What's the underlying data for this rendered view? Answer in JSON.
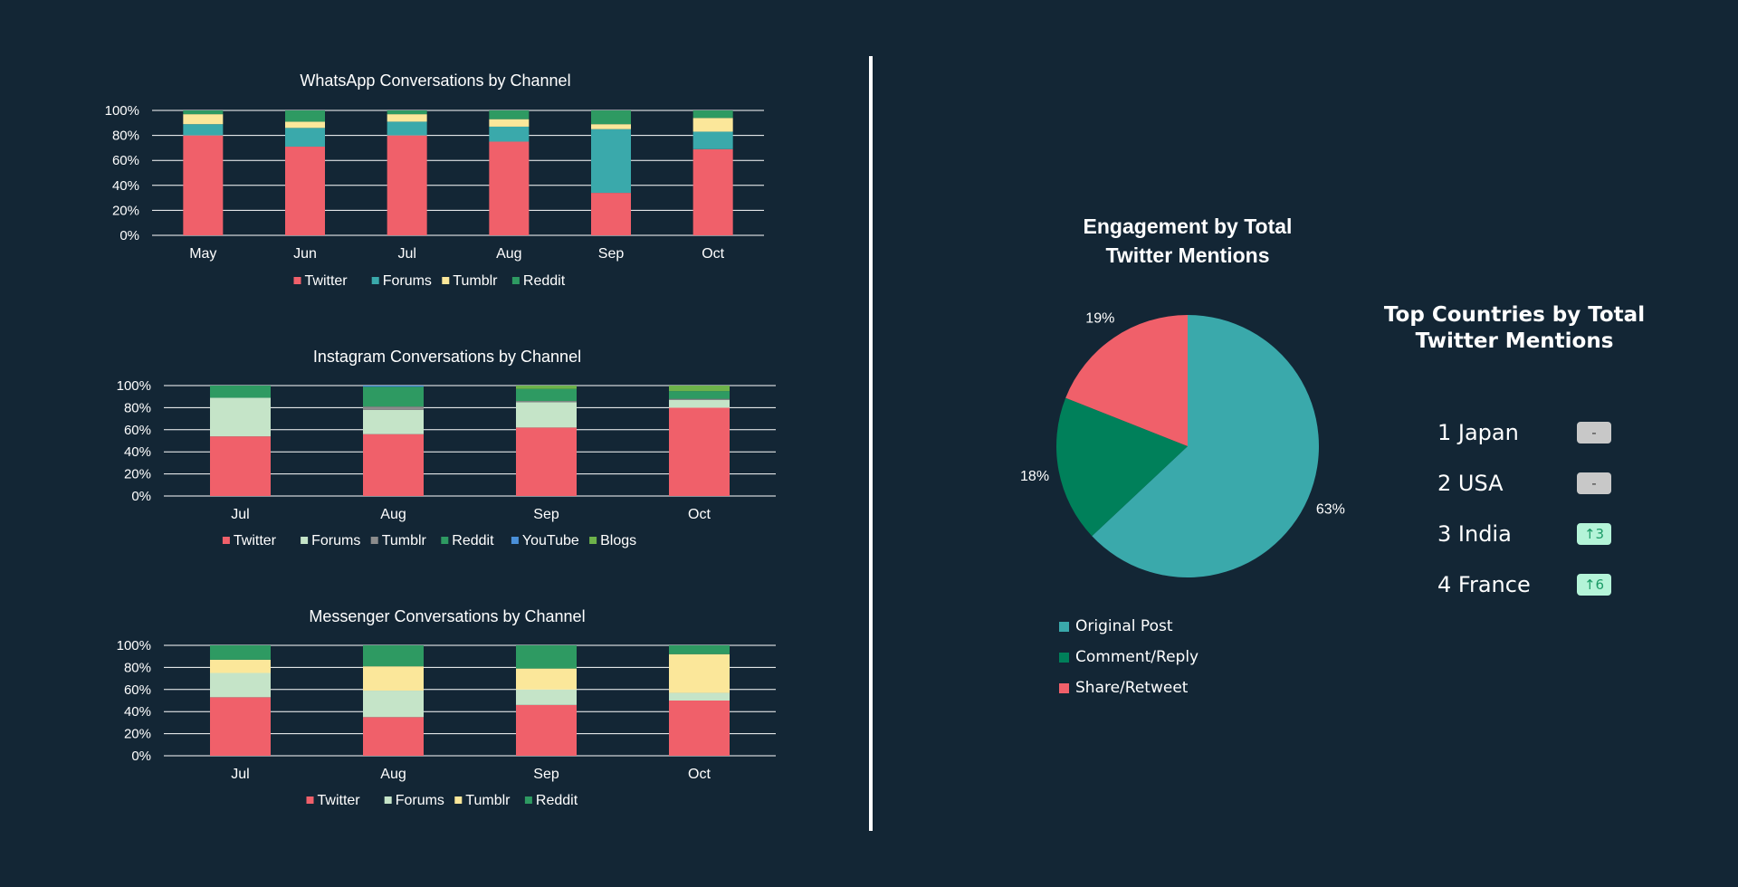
{
  "colors": {
    "background": "#132635",
    "twitter": "#f0606a",
    "forums_whatsapp": "#3aa9ab",
    "forums_light": "#c5e4c8",
    "tumblr_yellow": "#fbe79a",
    "tumblr_gray": "#8c8c8c",
    "reddit": "#2e9a62",
    "youtube": "#4a90d9",
    "blogs": "#6db24a",
    "pie_original": "#3aa9ab",
    "pie_comment": "#00805a",
    "pie_share": "#f0606a",
    "badge_neutral": "#c8c8c8",
    "badge_up": "#b4f4d8"
  },
  "chart_data": [
    {
      "type": "bar",
      "stacked": true,
      "percent": true,
      "title": "WhatsApp Conversations by Channel",
      "categories": [
        "May",
        "Jun",
        "Jul",
        "Aug",
        "Sep",
        "Oct"
      ],
      "yticks": [
        "0%",
        "20%",
        "40%",
        "60%",
        "80%",
        "100%"
      ],
      "ylim": [
        0,
        100
      ],
      "grid": true,
      "legend_position": "bottom",
      "series": [
        {
          "name": "Twitter",
          "color": "#f0606a",
          "values": [
            80,
            71,
            80,
            75,
            34,
            69
          ]
        },
        {
          "name": "Forums",
          "color": "#3aa9ab",
          "values": [
            9,
            15,
            11,
            12,
            51,
            14
          ]
        },
        {
          "name": "Tumblr",
          "color": "#fbe79a",
          "values": [
            8,
            5,
            6,
            6,
            4,
            11
          ]
        },
        {
          "name": "Reddit",
          "color": "#2e9a62",
          "values": [
            3,
            9,
            3,
            7,
            11,
            6
          ]
        }
      ]
    },
    {
      "type": "bar",
      "stacked": true,
      "percent": true,
      "title": "Instagram Conversations by Channel",
      "categories": [
        "Jul",
        "Aug",
        "Sep",
        "Oct"
      ],
      "yticks": [
        "0%",
        "20%",
        "40%",
        "60%",
        "80%",
        "100%"
      ],
      "ylim": [
        0,
        100
      ],
      "grid": true,
      "legend_position": "bottom",
      "series": [
        {
          "name": "Twitter",
          "color": "#f0606a",
          "values": [
            54,
            56,
            62,
            80
          ]
        },
        {
          "name": "Forums",
          "color": "#c5e4c8",
          "values": [
            35,
            22,
            23,
            7
          ]
        },
        {
          "name": "Tumblr",
          "color": "#8c8c8c",
          "values": [
            0,
            3,
            1,
            1
          ]
        },
        {
          "name": "Reddit",
          "color": "#2e9a62",
          "values": [
            11,
            18,
            11,
            7
          ]
        },
        {
          "name": "YouTube",
          "color": "#4a90d9",
          "values": [
            0,
            1,
            0,
            0
          ]
        },
        {
          "name": "Blogs",
          "color": "#6db24a",
          "values": [
            0,
            0,
            3,
            5
          ]
        }
      ]
    },
    {
      "type": "bar",
      "stacked": true,
      "percent": true,
      "title": "Messenger Conversations by Channel",
      "categories": [
        "Jul",
        "Aug",
        "Sep",
        "Oct"
      ],
      "yticks": [
        "0%",
        "20%",
        "40%",
        "60%",
        "80%",
        "100%"
      ],
      "ylim": [
        0,
        100
      ],
      "grid": true,
      "legend_position": "bottom",
      "series": [
        {
          "name": "Twitter",
          "color": "#f0606a",
          "values": [
            53,
            35,
            46,
            50
          ]
        },
        {
          "name": "Forums",
          "color": "#c5e4c8",
          "values": [
            22,
            24,
            14,
            7
          ]
        },
        {
          "name": "Tumblr",
          "color": "#fbe79a",
          "values": [
            12,
            22,
            19,
            35
          ]
        },
        {
          "name": "Reddit",
          "color": "#2e9a62",
          "values": [
            13,
            19,
            21,
            8
          ]
        }
      ]
    },
    {
      "type": "pie",
      "title_lines": [
        "Engagement by Total",
        "Twitter Mentions"
      ],
      "legend_position": "bottom",
      "slices": [
        {
          "name": "Original Post",
          "value": 63,
          "label": "63%",
          "color": "#3aa9ab"
        },
        {
          "name": "Comment/Reply",
          "value": 18,
          "label": "18%",
          "color": "#00805a"
        },
        {
          "name": "Share/Retweet",
          "value": 19,
          "label": "19%",
          "color": "#f0606a"
        }
      ]
    }
  ],
  "countries": {
    "title_lines": [
      "Top Countries by Total",
      "Twitter Mentions"
    ],
    "items": [
      {
        "name": "1 Japan",
        "badge": "-",
        "trend": "neutral"
      },
      {
        "name": "2 USA",
        "badge": "-",
        "trend": "neutral"
      },
      {
        "name": "3 India",
        "badge": "↑3",
        "trend": "up"
      },
      {
        "name": "4 France",
        "badge": "↑6",
        "trend": "up"
      }
    ]
  }
}
